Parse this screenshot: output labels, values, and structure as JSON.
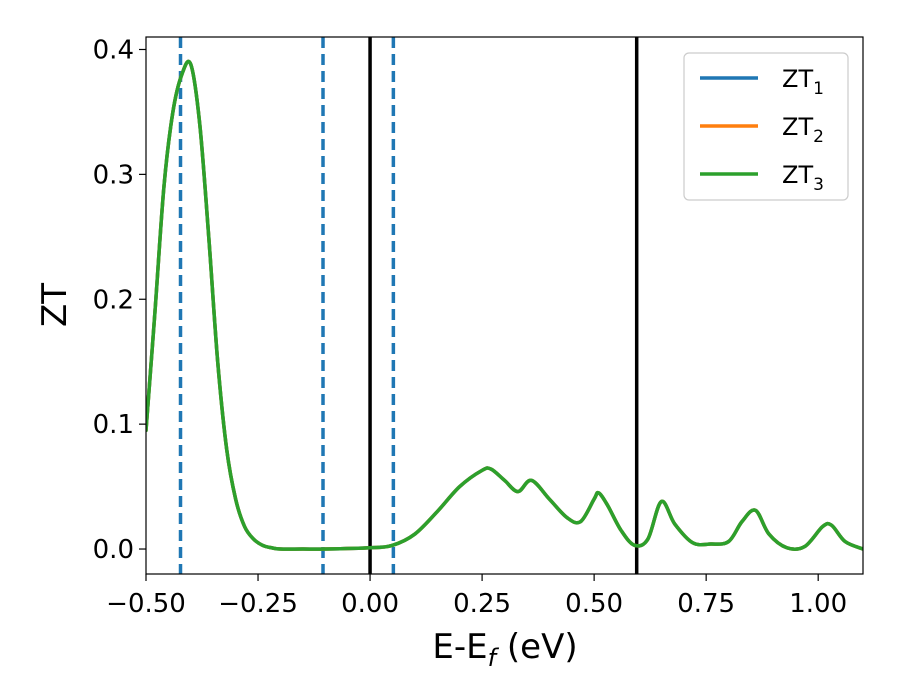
{
  "chart_data": {
    "type": "line",
    "title": "",
    "xlabel": "E-E",
    "xlabel_sub": "f",
    "xlabel_unit": " (eV)",
    "ylabel": "ZT",
    "xlim": [
      -0.5,
      1.1
    ],
    "ylim": [
      -0.02,
      0.41
    ],
    "xticks": [
      -0.5,
      -0.25,
      0.0,
      0.25,
      0.5,
      0.75,
      1.0
    ],
    "xtick_labels": [
      "−0.50",
      "−0.25",
      "0.00",
      "0.25",
      "0.50",
      "0.75",
      "1.00"
    ],
    "yticks": [
      0.0,
      0.1,
      0.2,
      0.3,
      0.4
    ],
    "ytick_labels": [
      "0.0",
      "0.1",
      "0.2",
      "0.3",
      "0.4"
    ],
    "grid": false,
    "legend_position": "top-right",
    "x": [
      -0.5,
      -0.48,
      -0.46,
      -0.44,
      -0.42,
      -0.4,
      -0.38,
      -0.36,
      -0.34,
      -0.32,
      -0.3,
      -0.28,
      -0.26,
      -0.24,
      -0.22,
      -0.2,
      -0.15,
      -0.1,
      0.0,
      0.05,
      0.1,
      0.15,
      0.2,
      0.25,
      0.27,
      0.3,
      0.33,
      0.36,
      0.4,
      0.44,
      0.47,
      0.5,
      0.51,
      0.53,
      0.56,
      0.59,
      0.62,
      0.65,
      0.68,
      0.72,
      0.76,
      0.8,
      0.83,
      0.86,
      0.89,
      0.93,
      0.97,
      1.01,
      1.03,
      1.06,
      1.1
    ],
    "series": [
      {
        "name": "ZT",
        "name_sub": "1",
        "color": "#1f77b4",
        "values": [
          0.095,
          0.19,
          0.29,
          0.35,
          0.38,
          0.388,
          0.34,
          0.25,
          0.15,
          0.08,
          0.04,
          0.018,
          0.008,
          0.003,
          0.001,
          0.0,
          0.0,
          0.0,
          0.001,
          0.003,
          0.012,
          0.03,
          0.05,
          0.063,
          0.064,
          0.055,
          0.046,
          0.055,
          0.04,
          0.025,
          0.022,
          0.04,
          0.045,
          0.035,
          0.015,
          0.003,
          0.008,
          0.038,
          0.02,
          0.005,
          0.004,
          0.006,
          0.022,
          0.031,
          0.012,
          0.001,
          0.002,
          0.018,
          0.019,
          0.006,
          0.0
        ]
      },
      {
        "name": "ZT",
        "name_sub": "2",
        "color": "#ff7f0e",
        "values": [
          0.095,
          0.19,
          0.29,
          0.35,
          0.38,
          0.388,
          0.34,
          0.25,
          0.15,
          0.08,
          0.04,
          0.018,
          0.008,
          0.003,
          0.001,
          0.0,
          0.0,
          0.0,
          0.001,
          0.003,
          0.012,
          0.03,
          0.05,
          0.063,
          0.064,
          0.055,
          0.046,
          0.055,
          0.04,
          0.025,
          0.022,
          0.04,
          0.045,
          0.035,
          0.015,
          0.003,
          0.008,
          0.038,
          0.02,
          0.005,
          0.004,
          0.006,
          0.022,
          0.031,
          0.012,
          0.001,
          0.002,
          0.018,
          0.019,
          0.006,
          0.0
        ]
      },
      {
        "name": "ZT",
        "name_sub": "3",
        "color": "#2ca02c",
        "values": [
          0.095,
          0.19,
          0.29,
          0.35,
          0.38,
          0.388,
          0.34,
          0.25,
          0.15,
          0.08,
          0.04,
          0.018,
          0.008,
          0.003,
          0.001,
          0.0,
          0.0,
          0.0,
          0.001,
          0.003,
          0.012,
          0.03,
          0.05,
          0.063,
          0.064,
          0.055,
          0.046,
          0.055,
          0.04,
          0.025,
          0.022,
          0.04,
          0.045,
          0.035,
          0.015,
          0.003,
          0.008,
          0.038,
          0.02,
          0.005,
          0.004,
          0.006,
          0.022,
          0.031,
          0.012,
          0.001,
          0.002,
          0.018,
          0.019,
          0.006,
          0.0
        ]
      }
    ],
    "vlines": [
      {
        "x": -0.423,
        "style": "dashed",
        "color": "#1f77b4"
      },
      {
        "x": -0.105,
        "style": "dashed",
        "color": "#1f77b4"
      },
      {
        "x": 0.052,
        "style": "dashed",
        "color": "#1f77b4"
      },
      {
        "x": 0.0,
        "style": "solid",
        "color": "#000000"
      },
      {
        "x": 0.595,
        "style": "solid",
        "color": "#000000"
      }
    ]
  }
}
